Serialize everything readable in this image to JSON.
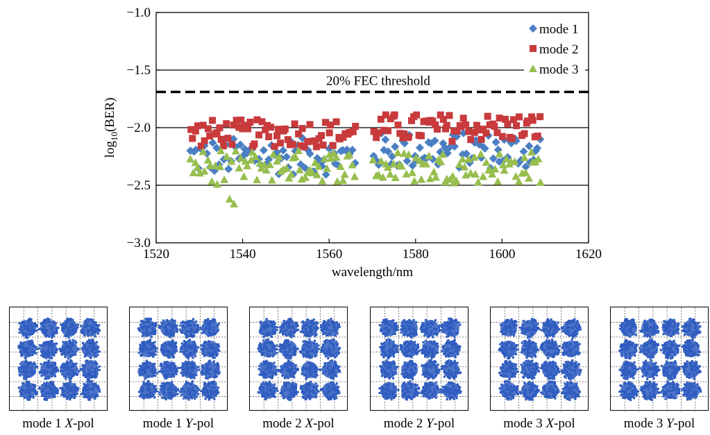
{
  "chart_data": [
    {
      "type": "scatter",
      "title": "",
      "xlabel": "wavelength/nm",
      "ylabel_main": "log",
      "ylabel_sub": "10",
      "ylabel_tail": "(BER)",
      "xlim": [
        1520,
        1620
      ],
      "ylim": [
        -3.0,
        -1.0
      ],
      "x_ticks": [
        "1520",
        "1540",
        "1560",
        "1580",
        "1600",
        "1620"
      ],
      "y_ticks": [
        "−1.0",
        "−1.5",
        "−2.0",
        "−2.5",
        "−3.0"
      ],
      "grid_y": [
        -1.5,
        -2.0,
        -2.5
      ],
      "legend_position": "top-right",
      "threshold": {
        "value": -1.69,
        "label": "20% FEC threshold",
        "style": "dashed"
      },
      "series": [
        {
          "name": "mode 1",
          "color": "#4a7fc3",
          "marker": "diamond",
          "x_range": [
            1528,
            1609
          ],
          "gap": [
            1566,
            1570
          ],
          "baseline": -2.22,
          "spread": 0.16
        },
        {
          "name": "mode 2",
          "color": "#c83a3c",
          "marker": "square",
          "x_range": [
            1528,
            1609
          ],
          "gap": [
            1566,
            1570
          ],
          "baseline": -2.02,
          "spread": 0.12
        },
        {
          "name": "mode 3",
          "color": "#97be4e",
          "marker": "triangle",
          "x_range": [
            1528,
            1609
          ],
          "gap": [
            1566,
            1570
          ],
          "baseline": -2.3,
          "spread": 0.14
        }
      ]
    },
    {
      "type": "scatter",
      "description": "16QAM constellations",
      "grid_lines": 7,
      "clusters_per_axis": 4,
      "point_color": "#2f5cbf",
      "panels": [
        {
          "label_mode": "mode 1 ",
          "label_pol": "X",
          "label_tail": "-pol"
        },
        {
          "label_mode": "mode 1 ",
          "label_pol": "Y",
          "label_tail": "-pol"
        },
        {
          "label_mode": "mode 2 ",
          "label_pol": "X",
          "label_tail": "-pol"
        },
        {
          "label_mode": "mode 2 ",
          "label_pol": "Y",
          "label_tail": "-pol"
        },
        {
          "label_mode": "mode 3 ",
          "label_pol": "X",
          "label_tail": "-pol"
        },
        {
          "label_mode": "mode 3 ",
          "label_pol": "Y",
          "label_tail": "-pol"
        }
      ]
    }
  ]
}
